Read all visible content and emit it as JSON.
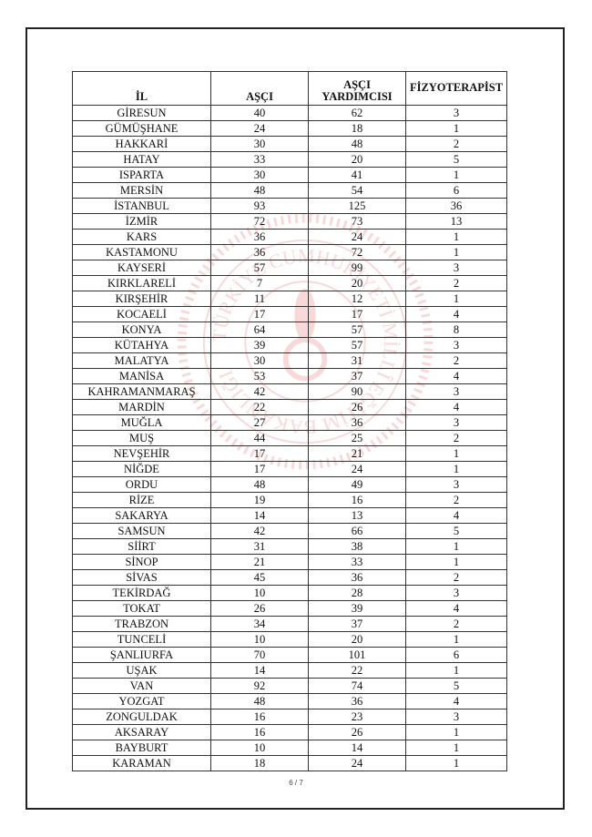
{
  "table": {
    "headers": [
      "İL",
      "AŞÇI",
      "AŞÇI YARDIMCISI",
      "FİZYOTERAPİST"
    ],
    "rows": [
      [
        "GİRESUN",
        "40",
        "62",
        "3"
      ],
      [
        "GÜMÜŞHANE",
        "24",
        "18",
        "1"
      ],
      [
        "HAKKARİ",
        "30",
        "48",
        "2"
      ],
      [
        "HATAY",
        "33",
        "20",
        "5"
      ],
      [
        "ISPARTA",
        "30",
        "41",
        "1"
      ],
      [
        "MERSİN",
        "48",
        "54",
        "6"
      ],
      [
        "İSTANBUL",
        "93",
        "125",
        "36"
      ],
      [
        "İZMİR",
        "72",
        "73",
        "13"
      ],
      [
        "KARS",
        "36",
        "24",
        "1"
      ],
      [
        "KASTAMONU",
        "36",
        "72",
        "1"
      ],
      [
        "KAYSERİ",
        "57",
        "99",
        "3"
      ],
      [
        "KIRKLARELİ",
        "7",
        "20",
        "2"
      ],
      [
        "KIRŞEHİR",
        "11",
        "12",
        "1"
      ],
      [
        "KOCAELİ",
        "17",
        "17",
        "4"
      ],
      [
        "KONYA",
        "64",
        "57",
        "8"
      ],
      [
        "KÜTAHYA",
        "39",
        "57",
        "3"
      ],
      [
        "MALATYA",
        "30",
        "31",
        "2"
      ],
      [
        "MANİSA",
        "53",
        "37",
        "4"
      ],
      [
        "KAHRAMANMARAŞ",
        "42",
        "90",
        "3"
      ],
      [
        "MARDİN",
        "22",
        "26",
        "4"
      ],
      [
        "MUĞLA",
        "27",
        "36",
        "3"
      ],
      [
        "MUŞ",
        "44",
        "25",
        "2"
      ],
      [
        "NEVŞEHİR",
        "17",
        "21",
        "1"
      ],
      [
        "NİĞDE",
        "17",
        "24",
        "1"
      ],
      [
        "ORDU",
        "48",
        "49",
        "3"
      ],
      [
        "RİZE",
        "19",
        "16",
        "2"
      ],
      [
        "SAKARYA",
        "14",
        "13",
        "4"
      ],
      [
        "SAMSUN",
        "42",
        "66",
        "5"
      ],
      [
        "SİİRT",
        "31",
        "38",
        "1"
      ],
      [
        "SİNOP",
        "21",
        "33",
        "1"
      ],
      [
        "SİVAS",
        "45",
        "36",
        "2"
      ],
      [
        "TEKİRDAĞ",
        "10",
        "28",
        "3"
      ],
      [
        "TOKAT",
        "26",
        "39",
        "4"
      ],
      [
        "TRABZON",
        "34",
        "37",
        "2"
      ],
      [
        "TUNCELİ",
        "10",
        "20",
        "1"
      ],
      [
        "ŞANLIURFA",
        "70",
        "101",
        "6"
      ],
      [
        "UŞAK",
        "14",
        "22",
        "1"
      ],
      [
        "VAN",
        "92",
        "74",
        "5"
      ],
      [
        "YOZGAT",
        "48",
        "36",
        "4"
      ],
      [
        "ZONGULDAK",
        "16",
        "23",
        "3"
      ],
      [
        "AKSARAY",
        "16",
        "26",
        "1"
      ],
      [
        "BAYBURT",
        "10",
        "14",
        "1"
      ],
      [
        "KARAMAN",
        "18",
        "24",
        "1"
      ]
    ]
  },
  "watermark": {
    "text": "TÜRKİYE CUMHURİYETİ MİLLÎ EĞİTİM BAKANLIĞI",
    "color": "#e8505b"
  },
  "footer": {
    "page": "6 / 7"
  }
}
